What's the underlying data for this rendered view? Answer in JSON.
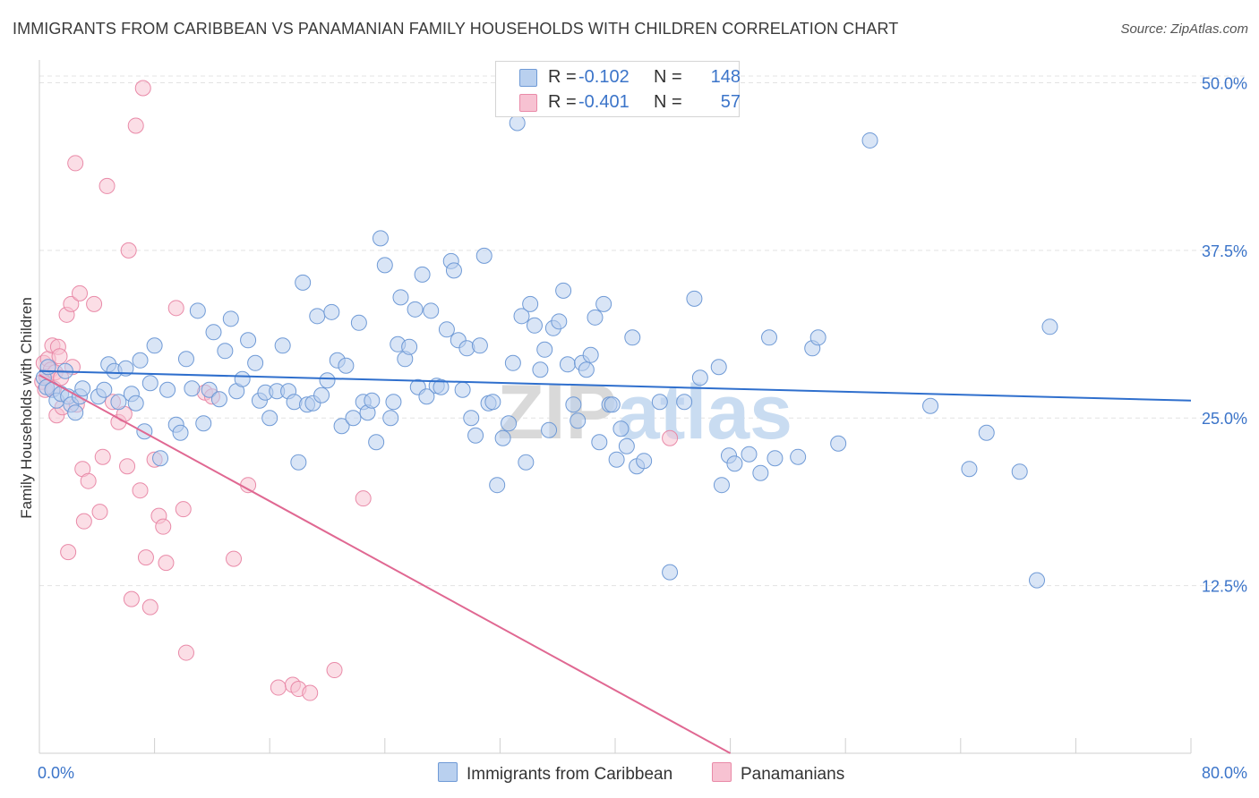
{
  "title": "IMMIGRANTS FROM CARIBBEAN VS PANAMANIAN FAMILY HOUSEHOLDS WITH CHILDREN CORRELATION CHART",
  "source": "Source: ZipAtlas.com",
  "watermark": "ZIPatlas",
  "legend": {
    "rows": [
      {
        "r_label": "R =",
        "r_value": "-0.102",
        "n_label": "N =",
        "n_value": "148"
      },
      {
        "r_label": "R =",
        "r_value": "-0.401",
        "n_label": "N =",
        "n_value": "57"
      }
    ]
  },
  "bottom_legend": [
    "Immigrants from Caribbean",
    "Panamanians"
  ],
  "colors": {
    "blue_fill": "#b9d0ef",
    "blue_stroke": "#6f9ad6",
    "blue_line": "#2f6fcd",
    "pink_fill": "#f7c2d2",
    "pink_stroke": "#e98aa8",
    "pink_line": "#e06892",
    "axis_text": "#3b74c9",
    "grid": "#e3e3e3"
  },
  "chart_data": {
    "type": "scatter",
    "title": "IMMIGRANTS FROM CARIBBEAN VS PANAMANIAN FAMILY HOUSEHOLDS WITH CHILDREN CORRELATION CHART",
    "xlabel": "",
    "ylabel": "Family Households with Children",
    "xlim": [
      0,
      80
    ],
    "ylim": [
      0,
      51.5
    ],
    "x_tick_labels": [
      "0.0%",
      "80.0%"
    ],
    "y_ticks": [
      12.5,
      25.0,
      37.5,
      50.0
    ],
    "y_tick_labels": [
      "12.5%",
      "25.0%",
      "37.5%",
      "50.0%"
    ],
    "grid": true,
    "series": [
      {
        "name": "Immigrants from Caribbean",
        "r": -0.102,
        "n": 148,
        "trend": {
          "x0": 0,
          "y0": 28.5,
          "x1": 80,
          "y1": 26.3
        },
        "points": [
          [
            0.3,
            28.0
          ],
          [
            0.5,
            27.3
          ],
          [
            0.6,
            28.8
          ],
          [
            0.9,
            27.1
          ],
          [
            1.2,
            26.3
          ],
          [
            1.5,
            26.8
          ],
          [
            1.8,
            28.5
          ],
          [
            2.0,
            26.6
          ],
          [
            2.2,
            26.0
          ],
          [
            2.5,
            25.4
          ],
          [
            2.8,
            26.6
          ],
          [
            3.0,
            27.2
          ],
          [
            4.1,
            26.6
          ],
          [
            4.5,
            27.1
          ],
          [
            4.8,
            29.0
          ],
          [
            5.2,
            28.5
          ],
          [
            5.5,
            26.2
          ],
          [
            6.0,
            28.7
          ],
          [
            6.4,
            26.8
          ],
          [
            6.7,
            26.1
          ],
          [
            7.0,
            29.3
          ],
          [
            7.3,
            24.0
          ],
          [
            7.7,
            27.6
          ],
          [
            8.0,
            30.4
          ],
          [
            8.4,
            22.0
          ],
          [
            8.9,
            27.1
          ],
          [
            9.5,
            24.5
          ],
          [
            9.8,
            23.9
          ],
          [
            10.2,
            29.4
          ],
          [
            10.6,
            27.2
          ],
          [
            11.0,
            33.0
          ],
          [
            11.4,
            24.6
          ],
          [
            11.8,
            27.1
          ],
          [
            12.1,
            31.4
          ],
          [
            12.5,
            26.4
          ],
          [
            12.9,
            30.0
          ],
          [
            13.3,
            32.4
          ],
          [
            13.7,
            27.0
          ],
          [
            14.1,
            27.9
          ],
          [
            14.5,
            30.8
          ],
          [
            15.0,
            29.1
          ],
          [
            15.3,
            26.3
          ],
          [
            15.7,
            26.9
          ],
          [
            16.0,
            25.0
          ],
          [
            16.5,
            27.0
          ],
          [
            16.9,
            30.4
          ],
          [
            17.3,
            27.0
          ],
          [
            17.7,
            26.2
          ],
          [
            18.0,
            21.7
          ],
          [
            18.3,
            35.1
          ],
          [
            18.6,
            26.0
          ],
          [
            19.0,
            26.1
          ],
          [
            19.3,
            32.6
          ],
          [
            19.6,
            26.7
          ],
          [
            20.0,
            27.8
          ],
          [
            20.3,
            32.9
          ],
          [
            20.7,
            29.3
          ],
          [
            21.0,
            24.4
          ],
          [
            21.3,
            28.9
          ],
          [
            21.8,
            25.0
          ],
          [
            22.2,
            32.1
          ],
          [
            22.5,
            26.2
          ],
          [
            22.8,
            25.4
          ],
          [
            23.1,
            26.3
          ],
          [
            23.4,
            23.2
          ],
          [
            23.7,
            38.4
          ],
          [
            24.0,
            36.4
          ],
          [
            24.4,
            25.0
          ],
          [
            24.6,
            26.2
          ],
          [
            24.9,
            30.5
          ],
          [
            25.1,
            34.0
          ],
          [
            25.4,
            29.4
          ],
          [
            25.7,
            30.3
          ],
          [
            26.1,
            33.1
          ],
          [
            26.3,
            27.3
          ],
          [
            26.6,
            35.7
          ],
          [
            26.9,
            26.6
          ],
          [
            27.2,
            33.0
          ],
          [
            27.6,
            27.4
          ],
          [
            27.9,
            27.3
          ],
          [
            28.3,
            31.6
          ],
          [
            28.6,
            36.7
          ],
          [
            28.8,
            36.0
          ],
          [
            29.1,
            30.8
          ],
          [
            29.4,
            27.1
          ],
          [
            29.7,
            30.2
          ],
          [
            30.0,
            25.0
          ],
          [
            30.3,
            23.7
          ],
          [
            30.6,
            30.4
          ],
          [
            30.9,
            37.1
          ],
          [
            31.2,
            26.1
          ],
          [
            31.5,
            26.2
          ],
          [
            31.8,
            20.0
          ],
          [
            32.2,
            23.5
          ],
          [
            32.6,
            24.6
          ],
          [
            32.9,
            29.1
          ],
          [
            33.2,
            47.0
          ],
          [
            33.5,
            32.6
          ],
          [
            33.8,
            21.7
          ],
          [
            34.1,
            33.5
          ],
          [
            34.4,
            31.9
          ],
          [
            34.8,
            28.6
          ],
          [
            35.1,
            30.1
          ],
          [
            35.4,
            24.1
          ],
          [
            35.7,
            31.7
          ],
          [
            36.1,
            32.2
          ],
          [
            36.4,
            34.5
          ],
          [
            36.7,
            29.0
          ],
          [
            37.1,
            26.0
          ],
          [
            37.4,
            24.8
          ],
          [
            37.7,
            29.1
          ],
          [
            38.0,
            28.6
          ],
          [
            38.3,
            29.7
          ],
          [
            38.6,
            32.5
          ],
          [
            38.9,
            23.2
          ],
          [
            39.2,
            33.5
          ],
          [
            39.6,
            26.0
          ],
          [
            39.8,
            26.0
          ],
          [
            40.1,
            21.9
          ],
          [
            40.4,
            24.2
          ],
          [
            40.8,
            22.9
          ],
          [
            41.2,
            31.0
          ],
          [
            41.5,
            21.4
          ],
          [
            42.0,
            21.8
          ],
          [
            43.1,
            26.2
          ],
          [
            43.8,
            13.5
          ],
          [
            44.8,
            26.2
          ],
          [
            45.5,
            33.9
          ],
          [
            45.9,
            28.0
          ],
          [
            47.2,
            28.8
          ],
          [
            47.4,
            20.0
          ],
          [
            47.9,
            22.2
          ],
          [
            48.3,
            21.6
          ],
          [
            49.3,
            22.3
          ],
          [
            50.1,
            20.9
          ],
          [
            50.7,
            31.0
          ],
          [
            51.1,
            22.0
          ],
          [
            52.7,
            22.1
          ],
          [
            53.7,
            30.2
          ],
          [
            54.1,
            31.0
          ],
          [
            55.5,
            23.1
          ],
          [
            57.7,
            45.7
          ],
          [
            61.9,
            25.9
          ],
          [
            64.6,
            21.2
          ],
          [
            65.8,
            23.9
          ],
          [
            68.1,
            21.0
          ],
          [
            69.3,
            12.9
          ],
          [
            70.2,
            31.8
          ]
        ]
      },
      {
        "name": "Panamanians",
        "r": -0.401,
        "n": 57,
        "trend": {
          "x0": 0,
          "y0": 28.2,
          "x1": 48,
          "y1": 0
        },
        "points": [
          [
            0.2,
            27.7
          ],
          [
            0.3,
            29.1
          ],
          [
            0.4,
            27.1
          ],
          [
            0.5,
            28.1
          ],
          [
            0.6,
            29.4
          ],
          [
            0.8,
            28.6
          ],
          [
            0.9,
            30.4
          ],
          [
            1.0,
            27.2
          ],
          [
            1.1,
            28.4
          ],
          [
            1.2,
            25.2
          ],
          [
            1.3,
            30.3
          ],
          [
            1.4,
            29.6
          ],
          [
            1.5,
            28.0
          ],
          [
            1.6,
            25.8
          ],
          [
            1.9,
            32.7
          ],
          [
            2.2,
            33.5
          ],
          [
            2.3,
            28.8
          ],
          [
            2.5,
            44.0
          ],
          [
            2.6,
            26.0
          ],
          [
            2.8,
            34.3
          ],
          [
            3.0,
            21.2
          ],
          [
            3.1,
            17.3
          ],
          [
            3.4,
            20.3
          ],
          [
            3.8,
            33.5
          ],
          [
            4.2,
            18.0
          ],
          [
            4.4,
            22.1
          ],
          [
            4.7,
            42.3
          ],
          [
            5.1,
            26.2
          ],
          [
            5.5,
            24.7
          ],
          [
            5.9,
            25.3
          ],
          [
            6.1,
            21.4
          ],
          [
            6.2,
            37.5
          ],
          [
            6.4,
            11.5
          ],
          [
            6.7,
            46.8
          ],
          [
            7.0,
            19.6
          ],
          [
            7.2,
            49.6
          ],
          [
            7.4,
            14.6
          ],
          [
            7.7,
            10.9
          ],
          [
            8.0,
            21.9
          ],
          [
            8.3,
            17.7
          ],
          [
            8.6,
            16.9
          ],
          [
            8.8,
            14.2
          ],
          [
            9.5,
            33.2
          ],
          [
            10.0,
            18.2
          ],
          [
            10.2,
            7.5
          ],
          [
            11.5,
            26.9
          ],
          [
            12.0,
            26.6
          ],
          [
            13.5,
            14.5
          ],
          [
            14.5,
            20.0
          ],
          [
            16.6,
            4.9
          ],
          [
            17.6,
            5.1
          ],
          [
            18.0,
            4.8
          ],
          [
            18.8,
            4.5
          ],
          [
            20.5,
            6.2
          ],
          [
            22.5,
            19.0
          ],
          [
            43.8,
            23.5
          ],
          [
            2.0,
            15.0
          ]
        ]
      }
    ]
  }
}
